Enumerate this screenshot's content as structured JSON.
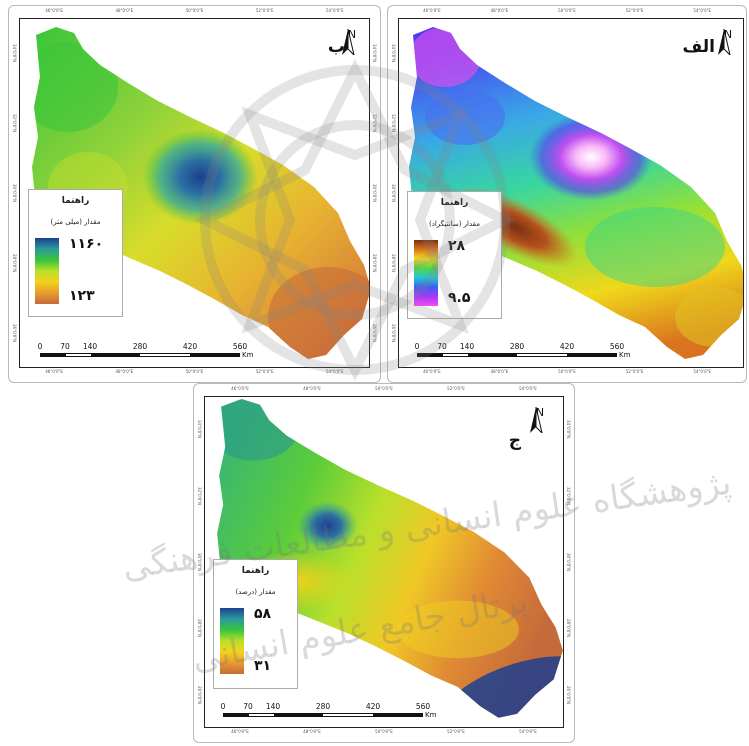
{
  "north_letter": "N",
  "legend_common": {
    "title": "راهنما"
  },
  "scale": {
    "ticks": [
      "0",
      "70",
      "140",
      "280",
      "420",
      "560"
    ],
    "tick_values": [
      0,
      70,
      140,
      280,
      420,
      560
    ],
    "max_km": 560,
    "unit": "Km"
  },
  "axis_ticks": {
    "top": [
      "46°0'0\"E",
      "48°0'0\"E",
      "50°0'0\"E",
      "52°0'0\"E",
      "54°0'0\"E"
    ],
    "side": [
      "34°0'0\"N",
      "32°0'0\"N",
      "30°0'0\"N",
      "28°0'0\"N",
      "26°0'0\"N"
    ]
  },
  "panels": {
    "b": {
      "label": "ب",
      "legend_subtitle": "مقدار (میلی متر)",
      "legend_max": "۱۱۶۰",
      "legend_min": "۱۲۳",
      "ramp_colors": [
        "#1d3f8f",
        "#2a9a9a",
        "#39c53a",
        "#b9e02a",
        "#f4d21a",
        "#e89a30",
        "#c56a3a"
      ]
    },
    "a": {
      "label": "الف",
      "legend_subtitle": "مقدار (سانتیگراد)",
      "legend_max": "۲۸",
      "legend_min": "۹.۵",
      "ramp_colors": [
        "#7a3012",
        "#d9731f",
        "#f6e11a",
        "#4fd64a",
        "#1fc9d6",
        "#3f5cf0",
        "#a43af5",
        "#f44cf4"
      ]
    },
    "c": {
      "label": "ج",
      "legend_subtitle": "مقدار (درصد)",
      "legend_max": "۵۸",
      "legend_min": "۳۱",
      "ramp_colors": [
        "#1d3f8f",
        "#2a9a9a",
        "#39c53a",
        "#b9e02a",
        "#f4d21a",
        "#e89a30",
        "#c56a3a"
      ]
    }
  },
  "watermark": {
    "line1": "پژوهشگاه علوم انسانی و مطالعات فرهنگی",
    "line2": "پرتال جامع علوم انسانی"
  }
}
